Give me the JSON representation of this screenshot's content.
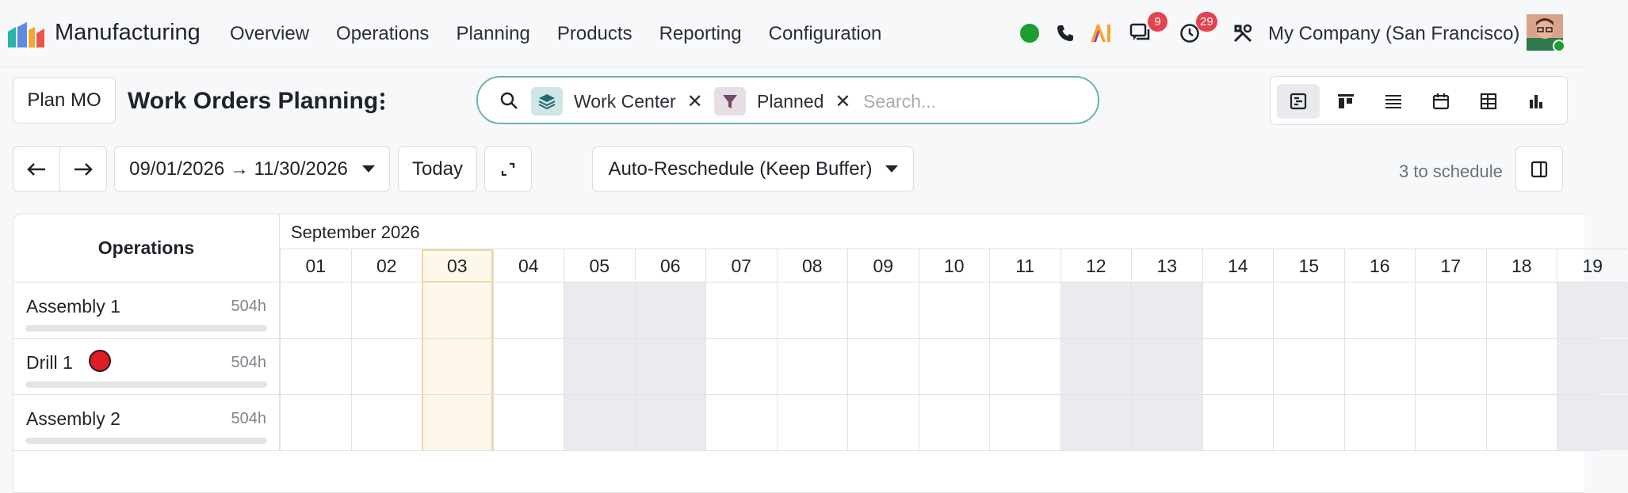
{
  "navbar": {
    "app_name": "Manufacturing",
    "menu": [
      "Overview",
      "Operations",
      "Planning",
      "Products",
      "Reporting",
      "Configuration"
    ],
    "messages_badge": "9",
    "activities_badge": "29",
    "company": "My Company (San Francisco)"
  },
  "control": {
    "plan_button": "Plan MO",
    "title": "Work Orders Planning",
    "date_range": "09/01/2026 → 11/30/2026",
    "today_button": "Today",
    "reschedule_button": "Auto-Reschedule (Keep Buffer)",
    "to_schedule": "3 to schedule"
  },
  "search": {
    "facets": [
      {
        "label": "Work Center",
        "icon": "layers-icon"
      },
      {
        "label": "Planned",
        "icon": "filter-icon"
      }
    ],
    "placeholder": "Search..."
  },
  "views": [
    "gantt-icon",
    "kanban-icon",
    "list-icon",
    "calendar-icon",
    "pivot-icon",
    "graph-icon"
  ],
  "gantt": {
    "header": "Operations",
    "month": "September 2026",
    "days": [
      "01",
      "02",
      "03",
      "04",
      "05",
      "06",
      "07",
      "08",
      "09",
      "10",
      "11",
      "12",
      "13",
      "14",
      "15",
      "16",
      "17",
      "18",
      "19"
    ],
    "today_index": 2,
    "weekend_indices": [
      4,
      5,
      11,
      12,
      18
    ],
    "rows": [
      {
        "name": "Assembly 1",
        "hours": "504h",
        "alert": false
      },
      {
        "name": "Drill 1",
        "hours": "504h",
        "alert": true
      },
      {
        "name": "Assembly 2",
        "hours": "504h",
        "alert": false
      }
    ]
  },
  "colors": {
    "accent": "#6fb1b4",
    "presence": "#1b9e2e",
    "badge": "#e5424f",
    "alert": "#e01b24",
    "today": "#fef8ea"
  }
}
